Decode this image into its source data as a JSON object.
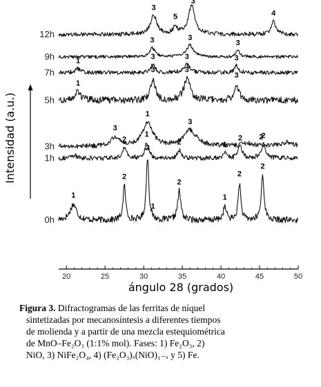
{
  "chart_data": {
    "type": "line",
    "xlabel": "ángulo 28 (grados)",
    "ylabel": "Intensidad (a.u.)",
    "xlim": [
      19,
      50
    ],
    "xticks": [
      20,
      25,
      30,
      35,
      40,
      45,
      50
    ],
    "grid": false,
    "series": [
      {
        "name": "0h",
        "baseline": 0.18,
        "noise": 0.012,
        "peaks": [
          {
            "x": 20.9,
            "h": 0.06,
            "w": 0.5
          },
          {
            "x": 27.5,
            "h": 0.13,
            "w": 0.2
          },
          {
            "x": 30.5,
            "h": 0.24,
            "w": 0.2
          },
          {
            "x": 34.6,
            "h": 0.11,
            "w": 0.25
          },
          {
            "x": 40.5,
            "h": 0.05,
            "w": 0.25
          },
          {
            "x": 42.4,
            "h": 0.14,
            "w": 0.2
          },
          {
            "x": 45.4,
            "h": 0.17,
            "w": 0.22
          }
        ],
        "labels": [
          {
            "x": 20.9,
            "text": "1"
          },
          {
            "x": 27.5,
            "text": "2"
          },
          {
            "x": 30.5,
            "text": "2"
          },
          {
            "x": 31.2,
            "text": "1"
          },
          {
            "x": 34.6,
            "text": "2"
          },
          {
            "x": 40.5,
            "text": "1"
          },
          {
            "x": 42.4,
            "text": "2"
          },
          {
            "x": 45.4,
            "text": "2"
          }
        ]
      },
      {
        "name": "1h",
        "baseline": 0.415,
        "noise": 0.009,
        "peaks": [
          {
            "x": 21.0,
            "h": 0.01,
            "w": 0.4
          },
          {
            "x": 27.5,
            "h": 0.04,
            "w": 0.3
          },
          {
            "x": 30.4,
            "h": 0.06,
            "w": 0.3
          },
          {
            "x": 34.6,
            "h": 0.03,
            "w": 0.3
          },
          {
            "x": 40.5,
            "h": 0.02,
            "w": 0.3
          },
          {
            "x": 42.5,
            "h": 0.045,
            "w": 0.3
          },
          {
            "x": 45.5,
            "h": 0.055,
            "w": 0.35
          }
        ],
        "labels": [
          {
            "x": 27.5,
            "text": "2"
          },
          {
            "x": 30.4,
            "text": "1"
          },
          {
            "x": 34.6,
            "text": "2"
          },
          {
            "x": 40.5,
            "text": "1"
          },
          {
            "x": 42.5,
            "text": "2"
          },
          {
            "x": 45.5,
            "text": "2"
          }
        ]
      },
      {
        "name": "3h",
        "baseline": 0.46,
        "noise": 0.009,
        "peaks": [
          {
            "x": 26.3,
            "h": 0.035,
            "w": 0.6
          },
          {
            "x": 30.5,
            "h": 0.09,
            "w": 0.8
          },
          {
            "x": 36.0,
            "h": 0.06,
            "w": 1.0
          },
          {
            "x": 43.5,
            "h": 0.01,
            "w": 1.0
          },
          {
            "x": 48.5,
            "h": 0.015,
            "w": 1.0
          }
        ],
        "labels": [
          {
            "x": 26.3,
            "text": "3"
          },
          {
            "x": 30.5,
            "text": "1"
          },
          {
            "x": 36.0,
            "text": "3"
          },
          {
            "x": 45.2,
            "text": "2"
          }
        ]
      },
      {
        "name": "5h",
        "baseline": 0.635,
        "noise": 0.013,
        "peaks": [
          {
            "x": 21.5,
            "h": 0.03,
            "w": 0.5
          },
          {
            "x": 31.2,
            "h": 0.08,
            "w": 0.35
          },
          {
            "x": 35.6,
            "h": 0.08,
            "w": 0.5
          },
          {
            "x": 42.0,
            "h": 0.06,
            "w": 0.35
          }
        ],
        "labels": [
          {
            "x": 21.5,
            "text": "1"
          },
          {
            "x": 31.2,
            "text": "3"
          },
          {
            "x": 35.6,
            "text": "3"
          },
          {
            "x": 42.0,
            "text": "3"
          }
        ]
      },
      {
        "name": "7h",
        "baseline": 0.74,
        "noise": 0.008,
        "peaks": [
          {
            "x": 21.5,
            "h": 0.015,
            "w": 0.4
          },
          {
            "x": 31.2,
            "h": 0.03,
            "w": 0.35
          },
          {
            "x": 35.6,
            "h": 0.03,
            "w": 0.45
          },
          {
            "x": 42.0,
            "h": 0.025,
            "w": 0.35
          }
        ],
        "labels": [
          {
            "x": 21.5,
            "text": "1"
          },
          {
            "x": 31.2,
            "text": "3"
          },
          {
            "x": 35.6,
            "text": "3"
          },
          {
            "x": 42.0,
            "text": "3"
          }
        ]
      },
      {
        "name": "9h",
        "baseline": 0.8,
        "noise": 0.006,
        "peaks": [
          {
            "x": 31.1,
            "h": 0.035,
            "w": 0.4
          },
          {
            "x": 36.0,
            "h": 0.045,
            "w": 0.5
          },
          {
            "x": 42.2,
            "h": 0.025,
            "w": 0.3
          }
        ],
        "labels": [
          {
            "x": 31.1,
            "text": "3"
          },
          {
            "x": 36.0,
            "text": "3"
          },
          {
            "x": 42.2,
            "text": "3"
          }
        ]
      },
      {
        "name": "12h",
        "baseline": 0.885,
        "noise": 0.008,
        "peaks": [
          {
            "x": 31.3,
            "h": 0.07,
            "w": 0.5
          },
          {
            "x": 34.1,
            "h": 0.03,
            "w": 0.3
          },
          {
            "x": 36.2,
            "h": 0.11,
            "w": 0.5
          },
          {
            "x": 46.8,
            "h": 0.05,
            "w": 0.35
          }
        ],
        "labels": [
          {
            "x": 31.3,
            "text": "3"
          },
          {
            "x": 34.1,
            "text": "5"
          },
          {
            "x": 36.4,
            "text": "3"
          },
          {
            "x": 46.8,
            "text": "4"
          }
        ]
      }
    ]
  },
  "caption": {
    "label": "Figura 3.",
    "line1": " Difractogramas de las ferritas de níquel",
    "line2": "sintetizadas por mecanosíntesis a diferentes tiempos",
    "line3": "de molienda y a partir de una mezcla estequiométrica",
    "line4": "de MnO–Fe₂O₃ (1:1% mol). Fases: 1) Fe₂O₃, 2)",
    "line5": "NiO, 3) NiFe₂O₄, 4) (Fe₂O₃)ₓ(NiO)₁₋ₓ y 5) Fe."
  }
}
